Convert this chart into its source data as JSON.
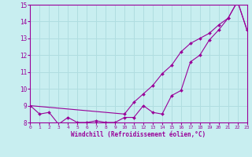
{
  "xlabel": "Windchill (Refroidissement éolien,°C)",
  "bg_color": "#c8eef0",
  "grid_color": "#b0dde0",
  "line_color": "#990099",
  "xlim": [
    0,
    23
  ],
  "ylim": [
    8,
    15
  ],
  "xticks": [
    0,
    1,
    2,
    3,
    4,
    5,
    6,
    7,
    8,
    9,
    10,
    11,
    12,
    13,
    14,
    15,
    16,
    17,
    18,
    19,
    20,
    21,
    22,
    23
  ],
  "yticks": [
    8,
    9,
    10,
    11,
    12,
    13,
    14,
    15
  ],
  "line1_x": [
    0,
    1,
    2,
    3,
    4,
    5,
    6,
    7,
    8,
    9,
    10,
    11,
    12,
    13,
    14,
    15,
    16,
    17,
    18,
    19,
    20,
    21,
    22,
    23
  ],
  "line1_y": [
    9.0,
    8.5,
    8.6,
    7.9,
    8.3,
    8.0,
    8.0,
    8.1,
    8.0,
    8.0,
    8.3,
    8.3,
    9.0,
    8.6,
    8.5,
    9.6,
    9.9,
    11.6,
    12.0,
    12.9,
    13.5,
    14.2,
    15.2,
    13.5
  ],
  "line2_x": [
    0,
    10,
    11,
    12,
    13,
    14,
    15,
    16,
    17,
    18,
    19,
    20,
    21,
    22,
    23
  ],
  "line2_y": [
    9.0,
    8.5,
    9.2,
    9.7,
    10.2,
    10.9,
    11.4,
    12.2,
    12.7,
    13.0,
    13.3,
    13.8,
    14.2,
    15.2,
    13.5
  ]
}
